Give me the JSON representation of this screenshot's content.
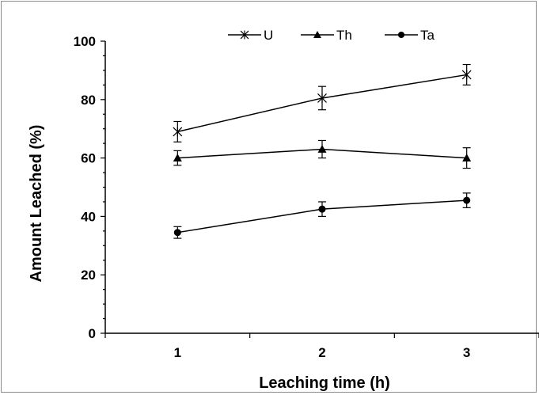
{
  "chart_data": {
    "type": "line",
    "xlabel": "Leaching time (h)",
    "ylabel": "Amount Leached (%)",
    "x": [
      1,
      2,
      3
    ],
    "xlim": [
      0.5,
      3.5
    ],
    "ylim": [
      0,
      100
    ],
    "yticks": [
      0,
      20,
      40,
      60,
      80,
      100
    ],
    "xticks": [
      1,
      2,
      3
    ],
    "grid": false,
    "legend_position": "top-center",
    "series": [
      {
        "name": "U",
        "marker": "star",
        "values": [
          69,
          80.5,
          88.5
        ],
        "errors": [
          3.5,
          4,
          3.5
        ]
      },
      {
        "name": "Th",
        "marker": "triangle",
        "values": [
          60,
          63,
          60
        ],
        "errors": [
          2.5,
          3,
          3.5
        ]
      },
      {
        "name": "Ta",
        "marker": "circle",
        "values": [
          34.5,
          42.5,
          45.5
        ],
        "errors": [
          2,
          2.5,
          2.5
        ]
      }
    ],
    "line_color": "#000000"
  }
}
